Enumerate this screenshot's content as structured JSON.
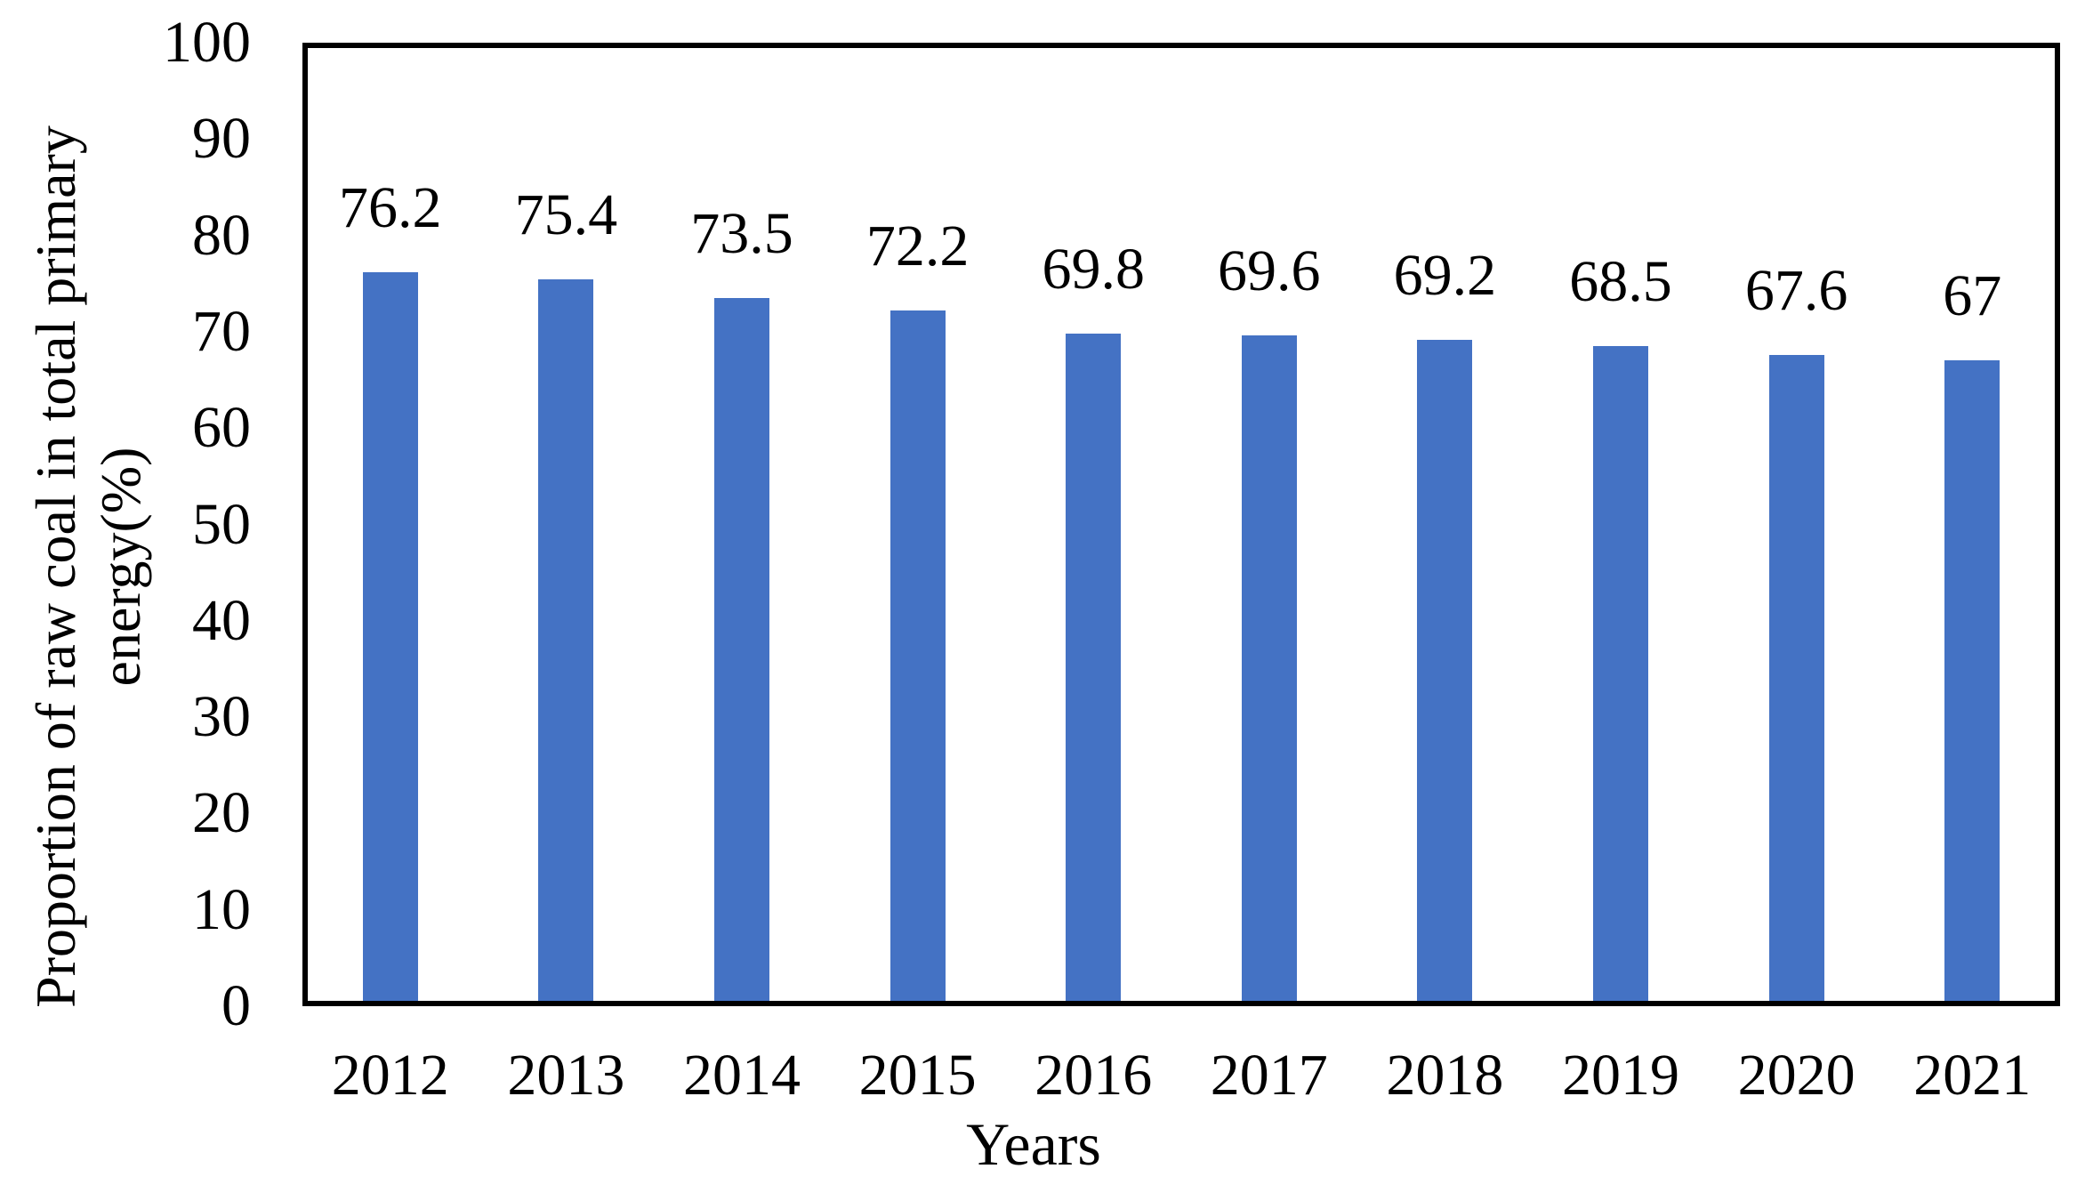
{
  "chart_data": {
    "type": "bar",
    "title": "",
    "xlabel": "Years",
    "ylabel": "Proportion of raw coal in total primary energy(%)",
    "ylabel_lines": [
      "Proportion of raw coal in total primary",
      "energy(%)"
    ],
    "categories": [
      "2012",
      "2013",
      "2014",
      "2015",
      "2016",
      "2017",
      "2018",
      "2019",
      "2020",
      "2021"
    ],
    "values": [
      76.2,
      75.4,
      73.5,
      72.2,
      69.8,
      69.6,
      69.2,
      68.5,
      67.6,
      67
    ],
    "bar_labels": [
      "76.2",
      "75.4",
      "73.5",
      "72.2",
      "69.8",
      "69.6",
      "69.2",
      "68.5",
      "67.6",
      "67"
    ],
    "y_ticks": [
      0,
      10,
      20,
      30,
      40,
      50,
      60,
      70,
      80,
      90,
      100
    ],
    "ylim": [
      0,
      100
    ],
    "bar_color": "#4472C4",
    "axis_color": "#000000",
    "text_color": "#000000",
    "grid": false,
    "legend": "none"
  }
}
